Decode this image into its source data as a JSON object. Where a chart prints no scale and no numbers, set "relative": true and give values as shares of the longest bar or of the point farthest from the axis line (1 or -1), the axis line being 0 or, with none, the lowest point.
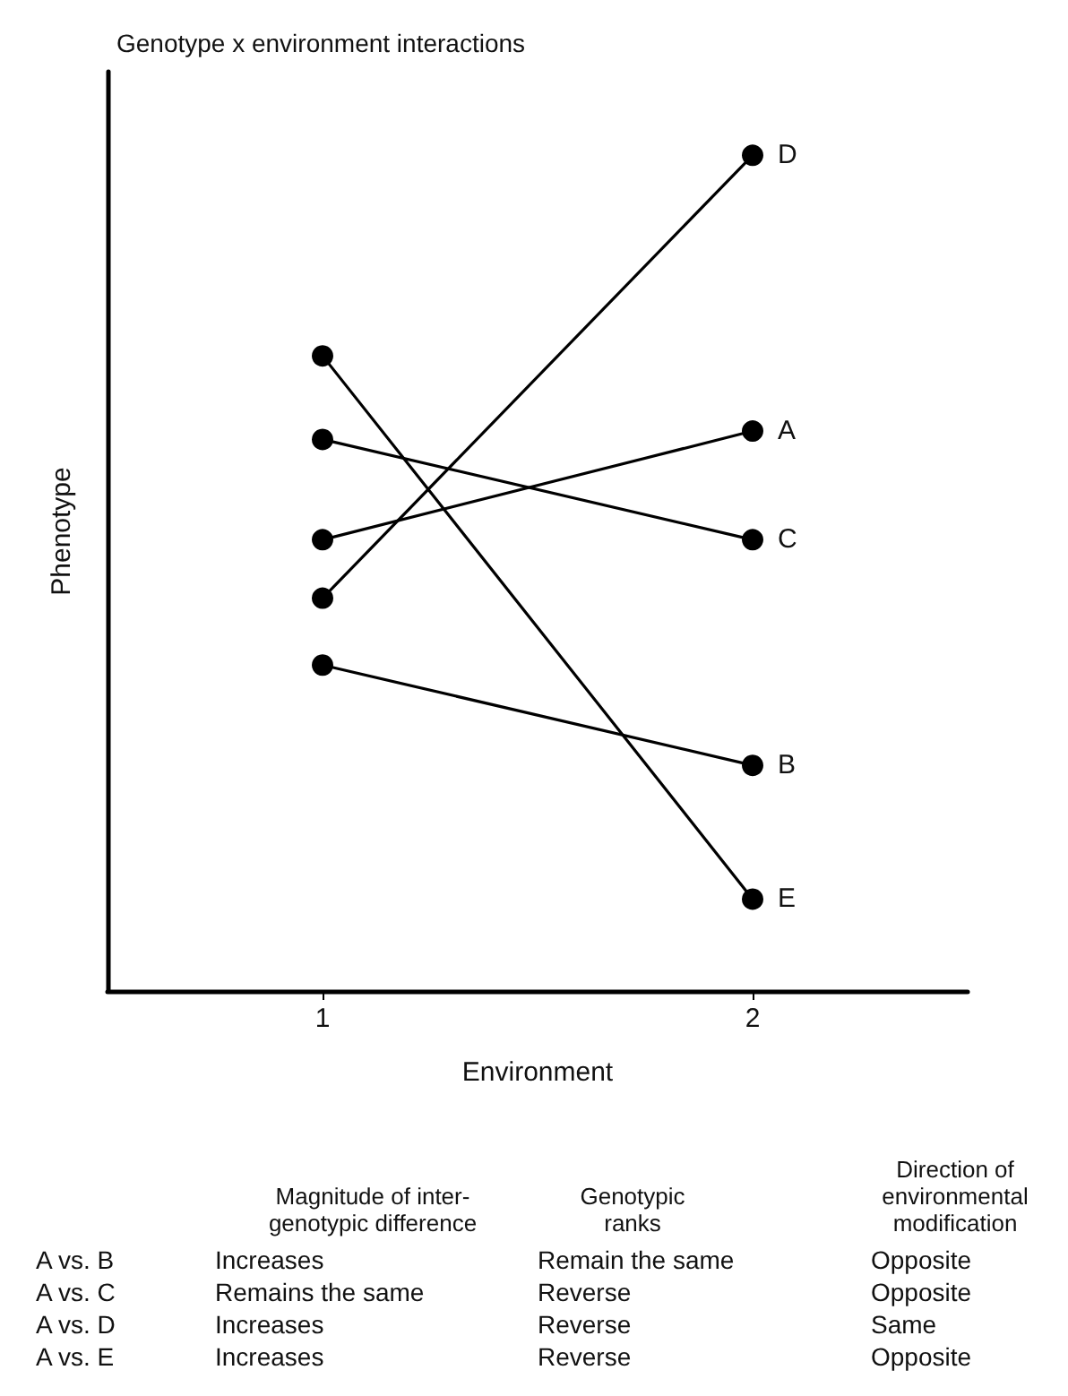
{
  "chart_data": {
    "type": "line",
    "title": "Genotype x environment interactions",
    "xlabel": "Environment",
    "ylabel": "Phenotype",
    "relative": true,
    "categories": [
      "1",
      "2"
    ],
    "series": [
      {
        "name": "A",
        "color": "#000000",
        "values": [
          0.54,
          0.67
        ]
      },
      {
        "name": "B",
        "color": "#000000",
        "values": [
          0.39,
          0.27
        ]
      },
      {
        "name": "C",
        "color": "#000000",
        "values": [
          0.66,
          0.54
        ]
      },
      {
        "name": "D",
        "color": "#000000",
        "values": [
          0.47,
          1
        ]
      },
      {
        "name": "E",
        "color": "#000000",
        "values": [
          0.76,
          0.11
        ]
      }
    ],
    "marker": "circle",
    "line_style": "solid",
    "grid": false,
    "legend": false,
    "annotations": [
      "Magnitude of inter-\ngenotypic difference",
      "Genotypic\nranks",
      "Direction of\nenvironmental\nmodification",
      "A vs. B",
      "Increases",
      "Remain the same",
      "Opposite",
      "A vs. C",
      "Remains the same",
      "Reverse",
      "Opposite",
      "A vs. D",
      "Increases",
      "Reverse",
      "Same",
      "A vs. E",
      "Increases",
      "Reverse",
      "Opposite"
    ]
  }
}
